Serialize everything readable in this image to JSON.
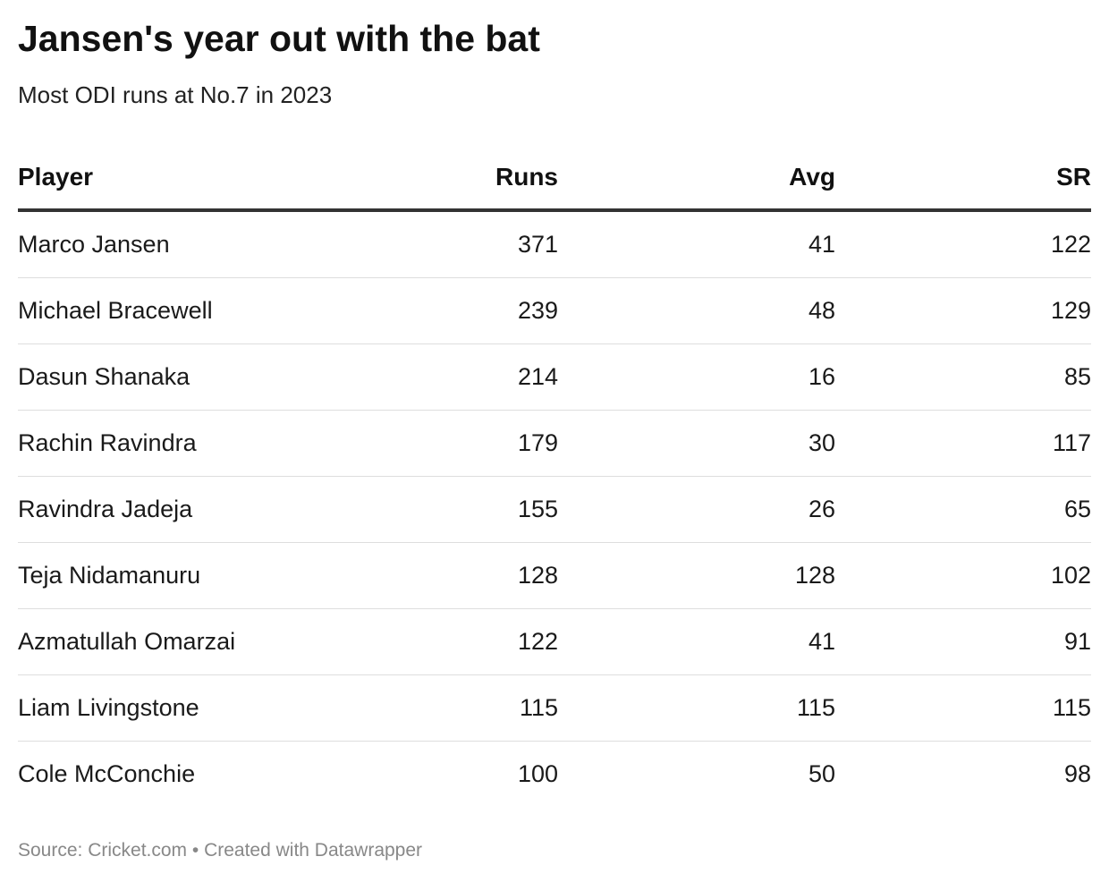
{
  "header": {
    "title": "Jansen's year out with the bat",
    "subtitle": "Most ODI runs at No.7 in 2023"
  },
  "chart_data": {
    "type": "table",
    "columns": [
      "Player",
      "Runs",
      "Avg",
      "SR"
    ],
    "rows": [
      {
        "player": "Marco Jansen",
        "runs": "371",
        "avg": "41",
        "sr": "122"
      },
      {
        "player": "Michael Bracewell",
        "runs": "239",
        "avg": "48",
        "sr": "129"
      },
      {
        "player": "Dasun Shanaka",
        "runs": "214",
        "avg": "16",
        "sr": "85"
      },
      {
        "player": "Rachin Ravindra",
        "runs": "179",
        "avg": "30",
        "sr": "117"
      },
      {
        "player": "Ravindra Jadeja",
        "runs": "155",
        "avg": "26",
        "sr": "65"
      },
      {
        "player": "Teja Nidamanuru",
        "runs": "128",
        "avg": "128",
        "sr": "102"
      },
      {
        "player": "Azmatullah Omarzai",
        "runs": "122",
        "avg": "41",
        "sr": "91"
      },
      {
        "player": "Liam Livingstone",
        "runs": "115",
        "avg": "115",
        "sr": "115"
      },
      {
        "player": "Cole McConchie",
        "runs": "100",
        "avg": "50",
        "sr": "98"
      }
    ]
  },
  "footer": {
    "source": "Source: Cricket.com • Created with Datawrapper"
  }
}
